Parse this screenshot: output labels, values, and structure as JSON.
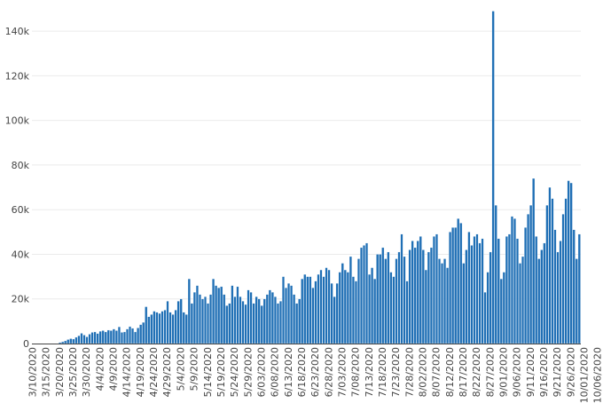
{
  "chart_data": {
    "type": "bar",
    "title": "",
    "xlabel": "",
    "ylabel": "",
    "ylim": [
      0,
      150000
    ],
    "yticks": [
      {
        "value": 0,
        "label": "0"
      },
      {
        "value": 20000,
        "label": "20k"
      },
      {
        "value": 40000,
        "label": "40k"
      },
      {
        "value": 60000,
        "label": "60k"
      },
      {
        "value": 80000,
        "label": "80k"
      },
      {
        "value": 100000,
        "label": "100k"
      },
      {
        "value": 120000,
        "label": "120k"
      },
      {
        "value": 140000,
        "label": "140k"
      }
    ],
    "xtick_labels": [
      "3/10/2020",
      "3/15/2020",
      "3/20/2020",
      "3/25/2020",
      "3/30/2020",
      "4/4/2020",
      "4/9/2020",
      "4/14/2020",
      "4/19/2020",
      "4/24/2020",
      "4/29/2020",
      "5/4/2020",
      "5/9/2020",
      "5/14/2020",
      "5/19/2020",
      "5/24/2020",
      "5/29/2020",
      "6/03/2020",
      "6/08/2020",
      "6/13/2020",
      "6/18/2020",
      "6/23/2020",
      "6/28/2020",
      "7/03/2020",
      "7/08/2020",
      "7/13/2020",
      "7/18/2020",
      "7/23/2020",
      "7/28/2020",
      "8/02/2020",
      "8/07/2020",
      "8/12/2020",
      "8/17/2020",
      "8/22/2020",
      "8/27/2020",
      "9/01/2020",
      "9/06/2020",
      "9/11/2020",
      "9/16/2020",
      "9/21/2020",
      "9/26/2020",
      "10/01/2020",
      "10/06/2020"
    ],
    "grid": true,
    "legend": "none",
    "color": "#1f6fb5",
    "values": [
      0,
      0,
      0,
      0,
      0,
      0,
      0,
      0,
      0,
      0,
      500,
      800,
      1200,
      1800,
      2200,
      2000,
      2800,
      3500,
      4600,
      3800,
      3000,
      4200,
      5000,
      5200,
      4500,
      5500,
      5800,
      5200,
      6000,
      5800,
      6500,
      5800,
      7500,
      5000,
      5200,
      6500,
      7600,
      6800,
      5200,
      7000,
      8500,
      9500,
      16500,
      12000,
      13000,
      14500,
      14000,
      13500,
      14500,
      15000,
      19000,
      14000,
      13000,
      15000,
      19000,
      20000,
      14000,
      13000,
      29000,
      18000,
      23000,
      26000,
      22000,
      20000,
      21000,
      18000,
      22000,
      29000,
      26000,
      25000,
      25500,
      22000,
      17000,
      18000,
      26000,
      21000,
      25500,
      21000,
      19000,
      17500,
      24000,
      23000,
      18000,
      21000,
      20000,
      17000,
      20000,
      22000,
      24000,
      23000,
      21000,
      18000,
      19000,
      30000,
      25000,
      27000,
      26000,
      22000,
      18000,
      20000,
      29000,
      31000,
      30000,
      30000,
      25000,
      28000,
      31000,
      33000,
      30000,
      34000,
      33000,
      27000,
      21000,
      27000,
      32000,
      36000,
      33000,
      32000,
      39000,
      30000,
      28000,
      38000,
      43000,
      44000,
      45000,
      31000,
      34000,
      29000,
      40000,
      40000,
      43000,
      38000,
      41000,
      32000,
      30000,
      38000,
      41000,
      49000,
      39000,
      28000,
      42000,
      46000,
      43000,
      46000,
      48000,
      42000,
      33000,
      41000,
      43000,
      48000,
      49000,
      38000,
      36000,
      38000,
      34000,
      50000,
      52000,
      52000,
      56000,
      54000,
      36000,
      42000,
      50000,
      44000,
      48000,
      49000,
      45000,
      47000,
      23000,
      32000,
      41000,
      149000,
      62000,
      47000,
      29000,
      32000,
      48000,
      49000,
      57000,
      56000,
      47000,
      36000,
      39000,
      52000,
      58000,
      62000,
      74000,
      48000,
      38000,
      42000,
      45000,
      62000,
      70000,
      65000,
      51000,
      41000,
      46000,
      58000,
      65000,
      73000,
      72000,
      51000,
      38000,
      49000
    ]
  }
}
